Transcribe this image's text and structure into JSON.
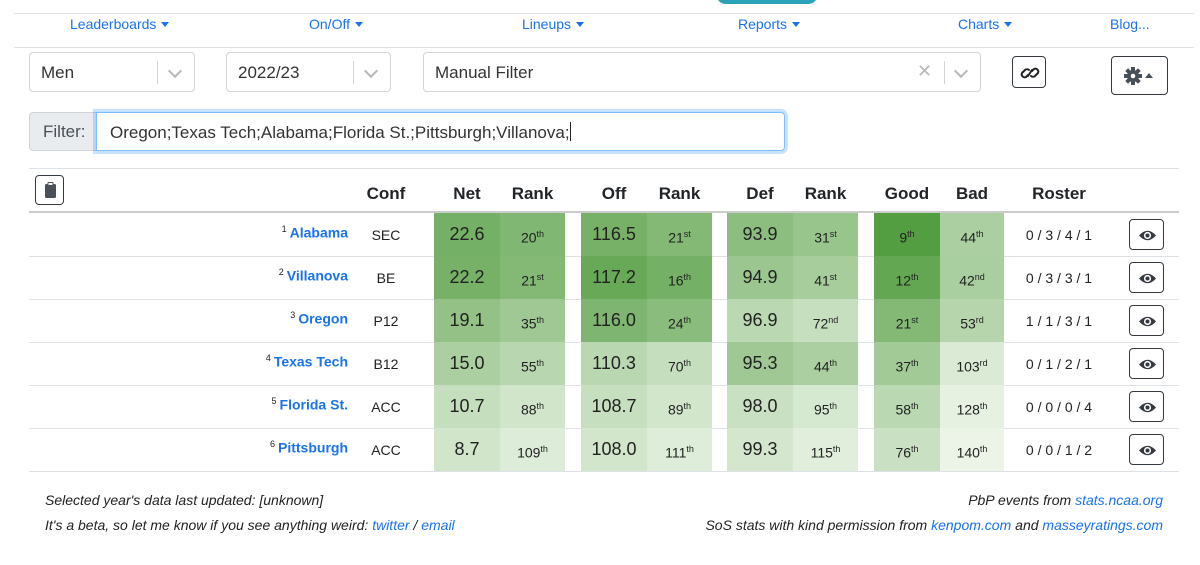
{
  "nav": {
    "items": [
      {
        "label": "Leaderboards",
        "has_caret": true
      },
      {
        "label": "On/Off",
        "has_caret": true
      },
      {
        "label": "Lineups",
        "has_caret": true
      },
      {
        "label": "Reports",
        "has_caret": true
      },
      {
        "label": "Charts",
        "has_caret": true
      },
      {
        "label": "Blog...",
        "has_caret": false
      }
    ]
  },
  "selects": {
    "gender": "Men",
    "season": "2022/23",
    "filter_mode": "Manual Filter"
  },
  "filter": {
    "label": "Filter:",
    "value": "Oregon;Texas Tech;Alabama;Florida St.;Pittsburgh;Villanova;"
  },
  "table": {
    "headers": {
      "conf": "Conf",
      "net": "Net",
      "net_rank": "Rank",
      "off": "Off",
      "off_rank": "Rank",
      "def": "Def",
      "def_rank": "Rank",
      "good": "Good",
      "bad": "Bad",
      "roster": "Roster"
    },
    "rows": [
      {
        "seed": "1",
        "team": "Alabama",
        "conf": "SEC",
        "net": "22.6",
        "net_rank_n": "20",
        "net_rank_s": "th",
        "off": "116.5",
        "off_rank_n": "21",
        "off_rank_s": "st",
        "def": "93.9",
        "def_rank_n": "31",
        "def_rank_s": "st",
        "good_n": "9",
        "good_s": "th",
        "bad_n": "44",
        "bad_s": "th",
        "roster": "0 / 3 / 4 / 1"
      },
      {
        "seed": "2",
        "team": "Villanova",
        "conf": "BE",
        "net": "22.2",
        "net_rank_n": "21",
        "net_rank_s": "st",
        "off": "117.2",
        "off_rank_n": "16",
        "off_rank_s": "th",
        "def": "94.9",
        "def_rank_n": "41",
        "def_rank_s": "st",
        "good_n": "12",
        "good_s": "th",
        "bad_n": "42",
        "bad_s": "nd",
        "roster": "0 / 3 / 3 / 1"
      },
      {
        "seed": "3",
        "team": "Oregon",
        "conf": "P12",
        "net": "19.1",
        "net_rank_n": "35",
        "net_rank_s": "th",
        "off": "116.0",
        "off_rank_n": "24",
        "off_rank_s": "th",
        "def": "96.9",
        "def_rank_n": "72",
        "def_rank_s": "nd",
        "good_n": "21",
        "good_s": "st",
        "bad_n": "53",
        "bad_s": "rd",
        "roster": "1 / 1 / 3 / 1"
      },
      {
        "seed": "4",
        "team": "Texas Tech",
        "conf": "B12",
        "net": "15.0",
        "net_rank_n": "55",
        "net_rank_s": "th",
        "off": "110.3",
        "off_rank_n": "70",
        "off_rank_s": "th",
        "def": "95.3",
        "def_rank_n": "44",
        "def_rank_s": "th",
        "good_n": "37",
        "good_s": "th",
        "bad_n": "103",
        "bad_s": "rd",
        "roster": "0 / 1 / 2 / 1"
      },
      {
        "seed": "5",
        "team": "Florida St.",
        "conf": "ACC",
        "net": "10.7",
        "net_rank_n": "88",
        "net_rank_s": "th",
        "off": "108.7",
        "off_rank_n": "89",
        "off_rank_s": "th",
        "def": "98.0",
        "def_rank_n": "95",
        "def_rank_s": "th",
        "good_n": "58",
        "good_s": "th",
        "bad_n": "128",
        "bad_s": "th",
        "roster": "0 / 0 / 0 / 4"
      },
      {
        "seed": "6",
        "team": "Pittsburgh",
        "conf": "ACC",
        "net": "8.7",
        "net_rank_n": "109",
        "net_rank_s": "th",
        "off": "108.0",
        "off_rank_n": "111",
        "off_rank_s": "th",
        "def": "99.3",
        "def_rank_n": "115",
        "def_rank_s": "th",
        "good_n": "76",
        "good_s": "th",
        "bad_n": "140",
        "bad_s": "th",
        "roster": "0 / 0 / 1 / 2"
      }
    ]
  },
  "footer": {
    "updated": "Selected year's data last updated: [unknown]",
    "beta_text": "It's a beta, so let me know if you see anything weird:",
    "twitter": "twitter",
    "slash": "/",
    "email": "email",
    "pbp_text": "PbP events from",
    "pbp_link": "stats.ncaa.org",
    "sos_text": "SoS stats with kind permission from",
    "kenpom": "kenpom.com",
    "and": "and",
    "massey": "masseyratings.com"
  },
  "colors": {
    "link": "#1a73e8",
    "heat_darkest": "#4e9a3b",
    "heat_lightest": "#f2f8ef"
  }
}
